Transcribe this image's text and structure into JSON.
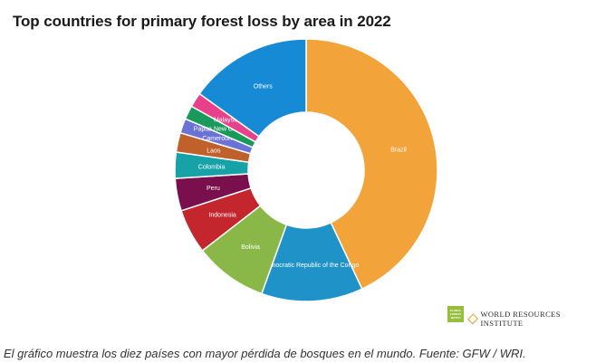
{
  "chart_data": {
    "type": "pie",
    "subtype": "donut",
    "title": "Top countries for primary forest loss by area in 2022",
    "slices": [
      {
        "label": "Brazil",
        "value": 43.0,
        "color": "#f2a33a"
      },
      {
        "label": "Democratic Republic of the Congo",
        "value": 12.5,
        "color": "#1f93c8"
      },
      {
        "label": "Bolivia",
        "value": 9.0,
        "color": "#8ab848"
      },
      {
        "label": "Indonesia",
        "value": 5.5,
        "color": "#c4262e"
      },
      {
        "label": "Peru",
        "value": 4.0,
        "color": "#7a0f4e"
      },
      {
        "label": "Colombia",
        "value": 3.2,
        "color": "#17a2a8"
      },
      {
        "label": "Laos",
        "value": 2.4,
        "color": "#c0612b"
      },
      {
        "label": "Cameroon",
        "value": 1.8,
        "color": "#6a72d6"
      },
      {
        "label": "Papua New Guinea",
        "value": 1.7,
        "color": "#1a9a5a"
      },
      {
        "label": "Malaysia",
        "value": 1.8,
        "color": "#e8408a"
      },
      {
        "label": "Others",
        "value": 15.1,
        "color": "#168ad4"
      }
    ]
  },
  "logos": {
    "gfw_text": "GLOBAL FOREST WATCH",
    "wri_text": "WORLD RESOURCES INSTITUTE"
  },
  "caption": "El gráfico muestra los diez países con mayor pérdida de bosques en el mundo. Fuente: GFW / WRI."
}
